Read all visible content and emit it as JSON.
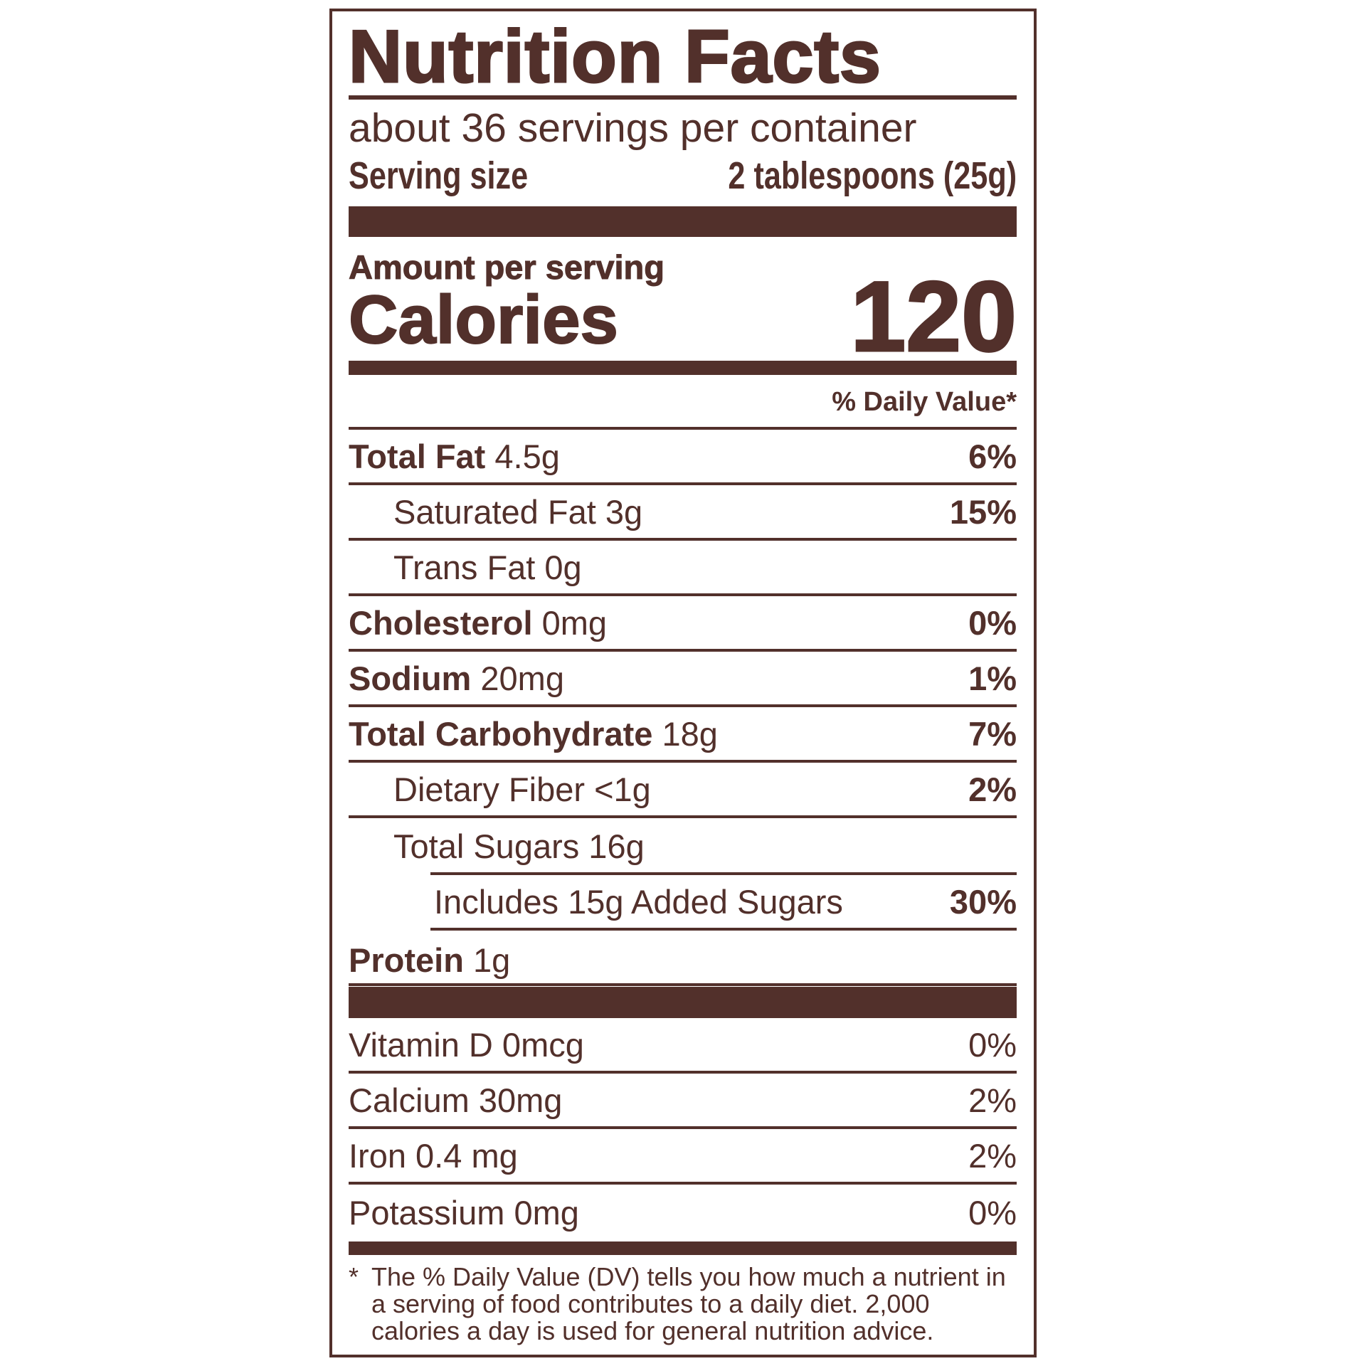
{
  "title": "Nutrition Facts",
  "servings_per_container": "about 36 servings per container",
  "serving_size": {
    "label": "Serving size",
    "value": "2 tablespoons (25g)"
  },
  "amount_per_serving": "Amount per serving",
  "calories": {
    "label": "Calories",
    "value": "120"
  },
  "daily_value_header": "% Daily Value*",
  "nutrients": [
    {
      "name": "Total Fat",
      "amount": "4.5g",
      "dv": "6%"
    },
    {
      "name": "Saturated Fat 3g",
      "amount": "",
      "dv": "15%"
    },
    {
      "name": "Trans Fat 0g",
      "amount": "",
      "dv": ""
    },
    {
      "name": "Cholesterol",
      "amount": "0mg",
      "dv": "0%"
    },
    {
      "name": "Sodium",
      "amount": "20mg",
      "dv": "1%"
    },
    {
      "name": "Total Carbohydrate",
      "amount": "18g",
      "dv": "7%"
    },
    {
      "name": "Dietary Fiber <1g",
      "amount": "",
      "dv": "2%"
    },
    {
      "name": "Total Sugars 16g",
      "amount": "",
      "dv": ""
    },
    {
      "name": "Includes 15g Added Sugars",
      "amount": "",
      "dv": "30%"
    },
    {
      "name": "Protein",
      "amount": "1g",
      "dv": ""
    }
  ],
  "vitamins": [
    {
      "name": "Vitamin D 0mcg",
      "dv": "0%"
    },
    {
      "name": "Calcium 30mg",
      "dv": "2%"
    },
    {
      "name": "Iron 0.4 mg",
      "dv": "2%"
    },
    {
      "name": "Potassium 0mg",
      "dv": "0%"
    }
  ],
  "footnote": {
    "marker": "*",
    "text": "The % Daily Value (DV) tells you how much a nutrient in a serving of food contributes to a daily diet. 2,000 calories a day is used for general nutrition advice."
  },
  "colors": {
    "ink": "#52302b",
    "background": "#ffffff"
  }
}
